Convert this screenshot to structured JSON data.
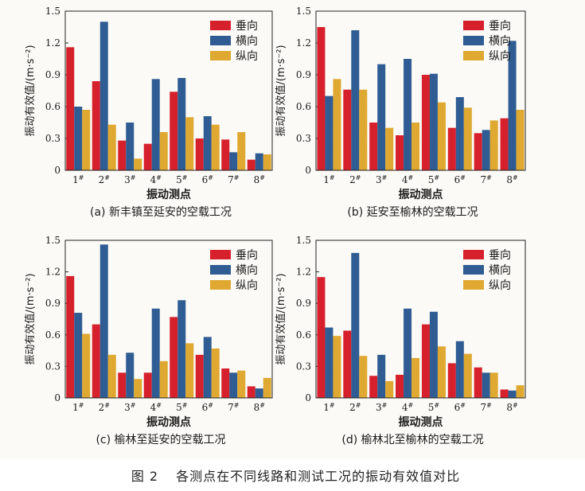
{
  "figure": {
    "caption_label": "图 2",
    "caption_text": "各测点在不同线路和测试工况的振动有效值对比"
  },
  "colors": {
    "vertical": "#d6202b",
    "lateral": "#2f5c92",
    "longitudinal": "#e9b43a"
  },
  "chart_data": [
    {
      "type": "bar",
      "subtitle": "(a)  新丰镇至延安的空载工况",
      "xlabel": "振动测点",
      "ylabel": "振动有效值/(m·s⁻²)",
      "ylim": [
        0,
        1.5
      ],
      "yticks": [
        "0",
        "0.3",
        "0.6",
        "0.9",
        "1.2",
        "1.5"
      ],
      "categories": [
        "1#",
        "2#",
        "3#",
        "4#",
        "5#",
        "6#",
        "7#",
        "8#"
      ],
      "legend_position": "top-right",
      "series": [
        {
          "name": "垂向",
          "values": [
            1.16,
            0.84,
            0.28,
            0.25,
            0.74,
            0.3,
            0.29,
            0.1
          ]
        },
        {
          "name": "横向",
          "values": [
            0.6,
            1.4,
            0.45,
            0.86,
            0.87,
            0.51,
            0.17,
            0.16
          ]
        },
        {
          "name": "纵向",
          "values": [
            0.57,
            0.43,
            0.11,
            0.36,
            0.5,
            0.43,
            0.36,
            0.15
          ]
        }
      ]
    },
    {
      "type": "bar",
      "subtitle": "(b)  延安至榆林的空载工况",
      "xlabel": "振动测点",
      "ylabel": "振动有效值/(m·s⁻²)",
      "ylim": [
        0,
        1.5
      ],
      "yticks": [
        "0",
        "0.3",
        "0.6",
        "0.9",
        "1.2",
        "1.5"
      ],
      "categories": [
        "1#",
        "2#",
        "3#",
        "4#",
        "5#",
        "6#",
        "7#",
        "8#"
      ],
      "legend_position": "top-right",
      "series": [
        {
          "name": "垂向",
          "values": [
            1.35,
            0.76,
            0.45,
            0.33,
            0.9,
            0.4,
            0.35,
            0.49
          ]
        },
        {
          "name": "横向",
          "values": [
            0.7,
            1.32,
            1.0,
            1.05,
            0.91,
            0.69,
            0.38,
            1.22
          ]
        },
        {
          "name": "纵向",
          "values": [
            0.86,
            0.76,
            0.4,
            0.45,
            0.64,
            0.59,
            0.47,
            0.57
          ]
        }
      ]
    },
    {
      "type": "bar",
      "subtitle": "(c)  榆林至延安的空载工况",
      "xlabel": "振动测点",
      "ylabel": "振动有效值/(m·s⁻²)",
      "ylim": [
        0,
        1.5
      ],
      "yticks": [
        "0",
        "0.3",
        "0.6",
        "0.9",
        "1.2",
        "1.5"
      ],
      "categories": [
        "1#",
        "2#",
        "3#",
        "4#",
        "5#",
        "6#",
        "7#",
        "8#"
      ],
      "legend_position": "top-right",
      "series": [
        {
          "name": "垂向",
          "values": [
            1.16,
            0.7,
            0.24,
            0.24,
            0.77,
            0.41,
            0.28,
            0.11
          ]
        },
        {
          "name": "横向",
          "values": [
            0.81,
            1.46,
            0.43,
            0.85,
            0.93,
            0.58,
            0.24,
            0.09
          ]
        },
        {
          "name": "纵向",
          "values": [
            0.61,
            0.41,
            0.18,
            0.35,
            0.52,
            0.47,
            0.26,
            0.19
          ]
        }
      ]
    },
    {
      "type": "bar",
      "subtitle": "(d)  榆林北至榆林的空载工况",
      "xlabel": "振动测点",
      "ylabel": "振动有效值/(m·s⁻²)",
      "ylim": [
        0,
        1.5
      ],
      "yticks": [
        "0",
        "0.3",
        "0.6",
        "0.9",
        "1.2",
        "1.5"
      ],
      "categories": [
        "1#",
        "2#",
        "3#",
        "4#",
        "5#",
        "6#",
        "7#",
        "8#"
      ],
      "legend_position": "top-right",
      "series": [
        {
          "name": "垂向",
          "values": [
            1.15,
            0.64,
            0.21,
            0.22,
            0.7,
            0.33,
            0.29,
            0.08
          ]
        },
        {
          "name": "横向",
          "values": [
            0.67,
            1.38,
            0.41,
            0.85,
            0.82,
            0.54,
            0.24,
            0.07
          ]
        },
        {
          "name": "纵向",
          "values": [
            0.59,
            0.4,
            0.16,
            0.38,
            0.49,
            0.42,
            0.24,
            0.12
          ]
        }
      ]
    }
  ]
}
